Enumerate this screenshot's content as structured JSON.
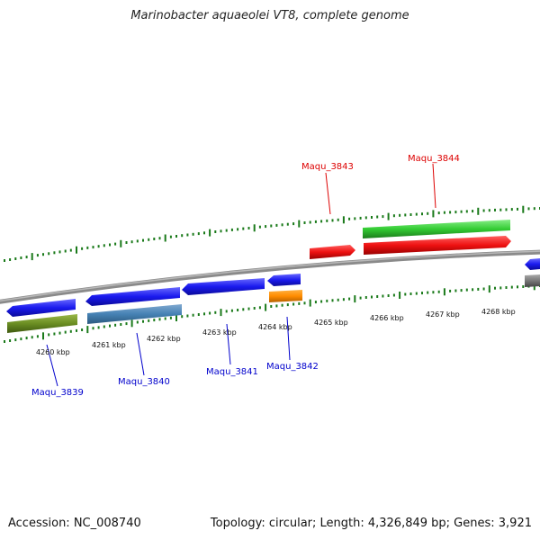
{
  "title": "Marinobacter aquaeolei VT8, complete genome",
  "footer": {
    "accession": "Accession: NC_008740",
    "summary": "Topology: circular; Length: 4,326,849 bp; Genes: 3,921"
  },
  "position_labels": [
    "4260 kbp",
    "4261 kbp",
    "4262 kbp",
    "4263 kbp",
    "4264 kbp",
    "4265 kbp",
    "4266 kbp",
    "4267 kbp",
    "4268 kbp"
  ],
  "gene_labels": [
    {
      "id": "Maqu_3839",
      "text": "Maqu_3839",
      "color": "#0000cc"
    },
    {
      "id": "Maqu_3840",
      "text": "Maqu_3840",
      "color": "#0000cc"
    },
    {
      "id": "Maqu_3841",
      "text": "Maqu_3841",
      "color": "#0000cc"
    },
    {
      "id": "Maqu_3842",
      "text": "Maqu_3842",
      "color": "#0000cc"
    },
    {
      "id": "Maqu_3843",
      "text": "Maqu_3843",
      "color": "#dd0000"
    },
    {
      "id": "Maqu_3844",
      "text": "Maqu_3844",
      "color": "#dd0000"
    }
  ],
  "colors": {
    "backbone": "#8a8a8a",
    "ticks": "#1a7a1a",
    "blue_gene": "#1a1aee",
    "olive_gene": "#6b8e23",
    "steel_gene": "#4682b4",
    "orange_gene": "#ff8c00",
    "red_gene": "#ee1111",
    "green_gene": "#33cc33",
    "gray_gene": "#777777"
  }
}
